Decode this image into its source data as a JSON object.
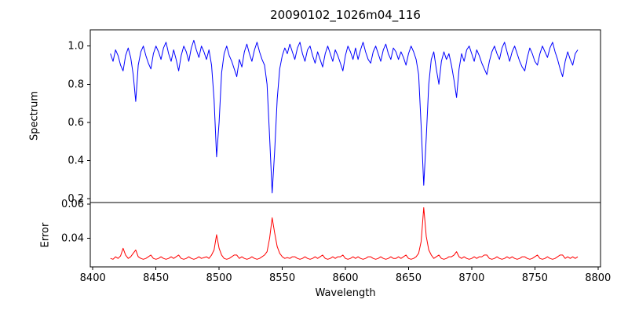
{
  "chart_data": {
    "type": "line",
    "title": "20090102_1026m04_116",
    "xlabel": "Wavelength",
    "grid": false,
    "legend": "none",
    "x_start": 8414,
    "x_step": 2,
    "xlim": [
      8398,
      8802
    ],
    "x_ticks": [
      8400,
      8450,
      8500,
      8550,
      8600,
      8650,
      8700,
      8750,
      8800
    ],
    "panels": {
      "top": {
        "ylabel": "Spectrum",
        "ylim": [
          0.18,
          1.085
        ],
        "yticks": [
          0.2,
          0.4,
          0.6,
          0.8,
          1.0
        ],
        "tick_decimals": 1
      },
      "bottom": {
        "ylabel": "Error",
        "ylim": [
          0.023,
          0.061
        ],
        "yticks": [
          0.04,
          0.06
        ],
        "tick_decimals": 2
      }
    },
    "series": [
      {
        "name": "Spectrum",
        "panel": "top",
        "color": "#0000ff",
        "values": [
          0.96,
          0.92,
          0.98,
          0.95,
          0.9,
          0.87,
          0.95,
          0.99,
          0.94,
          0.85,
          0.71,
          0.9,
          0.97,
          1.0,
          0.95,
          0.91,
          0.88,
          0.96,
          1.0,
          0.97,
          0.93,
          0.99,
          1.02,
          0.96,
          0.92,
          0.98,
          0.93,
          0.87,
          0.95,
          1.0,
          0.97,
          0.92,
          0.99,
          1.03,
          0.98,
          0.94,
          1.0,
          0.97,
          0.93,
          0.98,
          0.9,
          0.72,
          0.42,
          0.6,
          0.86,
          0.96,
          1.0,
          0.95,
          0.92,
          0.88,
          0.84,
          0.93,
          0.89,
          0.97,
          1.01,
          0.96,
          0.92,
          0.98,
          1.02,
          0.97,
          0.93,
          0.9,
          0.8,
          0.52,
          0.23,
          0.45,
          0.72,
          0.88,
          0.95,
          0.99,
          0.96,
          1.01,
          0.97,
          0.93,
          0.99,
          1.02,
          0.96,
          0.92,
          0.98,
          1.0,
          0.95,
          0.91,
          0.97,
          0.93,
          0.89,
          0.96,
          1.0,
          0.96,
          0.92,
          0.98,
          0.95,
          0.91,
          0.87,
          0.95,
          1.0,
          0.97,
          0.93,
          0.99,
          0.93,
          0.98,
          1.02,
          0.97,
          0.93,
          0.91,
          0.97,
          1.0,
          0.96,
          0.92,
          0.98,
          1.01,
          0.96,
          0.93,
          0.99,
          0.97,
          0.93,
          0.97,
          0.94,
          0.9,
          0.96,
          1.0,
          0.97,
          0.93,
          0.85,
          0.58,
          0.27,
          0.52,
          0.8,
          0.93,
          0.97,
          0.88,
          0.8,
          0.92,
          0.97,
          0.93,
          0.96,
          0.9,
          0.82,
          0.73,
          0.88,
          0.96,
          0.92,
          0.98,
          1.0,
          0.96,
          0.92,
          0.98,
          0.95,
          0.91,
          0.88,
          0.85,
          0.92,
          0.97,
          1.0,
          0.96,
          0.93,
          0.99,
          1.02,
          0.97,
          0.92,
          0.97,
          1.0,
          0.96,
          0.92,
          0.89,
          0.87,
          0.94,
          0.99,
          0.96,
          0.92,
          0.9,
          0.96,
          1.0,
          0.97,
          0.94,
          0.99,
          1.02,
          0.97,
          0.93,
          0.88,
          0.84,
          0.92,
          0.97,
          0.93,
          0.9,
          0.96,
          0.98
        ]
      },
      {
        "name": "Error",
        "panel": "bottom",
        "color": "#ff0000",
        "values": [
          0.028,
          0.0275,
          0.029,
          0.028,
          0.0295,
          0.034,
          0.03,
          0.028,
          0.029,
          0.031,
          0.033,
          0.029,
          0.028,
          0.0275,
          0.028,
          0.029,
          0.03,
          0.028,
          0.0275,
          0.028,
          0.029,
          0.028,
          0.0275,
          0.028,
          0.029,
          0.028,
          0.029,
          0.03,
          0.028,
          0.0275,
          0.028,
          0.029,
          0.028,
          0.0275,
          0.028,
          0.029,
          0.028,
          0.0285,
          0.029,
          0.028,
          0.03,
          0.033,
          0.042,
          0.034,
          0.03,
          0.028,
          0.0275,
          0.028,
          0.029,
          0.03,
          0.03,
          0.028,
          0.029,
          0.028,
          0.0275,
          0.028,
          0.029,
          0.028,
          0.0275,
          0.028,
          0.029,
          0.03,
          0.032,
          0.04,
          0.052,
          0.043,
          0.035,
          0.031,
          0.029,
          0.028,
          0.0285,
          0.028,
          0.029,
          0.029,
          0.028,
          0.0275,
          0.028,
          0.029,
          0.028,
          0.0275,
          0.028,
          0.029,
          0.028,
          0.029,
          0.03,
          0.028,
          0.0275,
          0.028,
          0.029,
          0.028,
          0.029,
          0.029,
          0.03,
          0.028,
          0.0275,
          0.028,
          0.029,
          0.028,
          0.029,
          0.028,
          0.0275,
          0.028,
          0.029,
          0.029,
          0.028,
          0.0275,
          0.028,
          0.029,
          0.028,
          0.0275,
          0.028,
          0.029,
          0.028,
          0.028,
          0.029,
          0.028,
          0.029,
          0.03,
          0.028,
          0.0275,
          0.028,
          0.029,
          0.031,
          0.038,
          0.058,
          0.041,
          0.033,
          0.03,
          0.028,
          0.029,
          0.03,
          0.028,
          0.0275,
          0.028,
          0.029,
          0.029,
          0.03,
          0.032,
          0.029,
          0.028,
          0.029,
          0.028,
          0.0275,
          0.028,
          0.029,
          0.028,
          0.029,
          0.029,
          0.03,
          0.03,
          0.028,
          0.0275,
          0.028,
          0.029,
          0.028,
          0.0275,
          0.028,
          0.029,
          0.028,
          0.029,
          0.028,
          0.0275,
          0.028,
          0.029,
          0.029,
          0.028,
          0.0275,
          0.028,
          0.029,
          0.03,
          0.028,
          0.0275,
          0.028,
          0.029,
          0.028,
          0.0275,
          0.028,
          0.029,
          0.03,
          0.03,
          0.028,
          0.029,
          0.028,
          0.029,
          0.028,
          0.029
        ]
      }
    ]
  }
}
